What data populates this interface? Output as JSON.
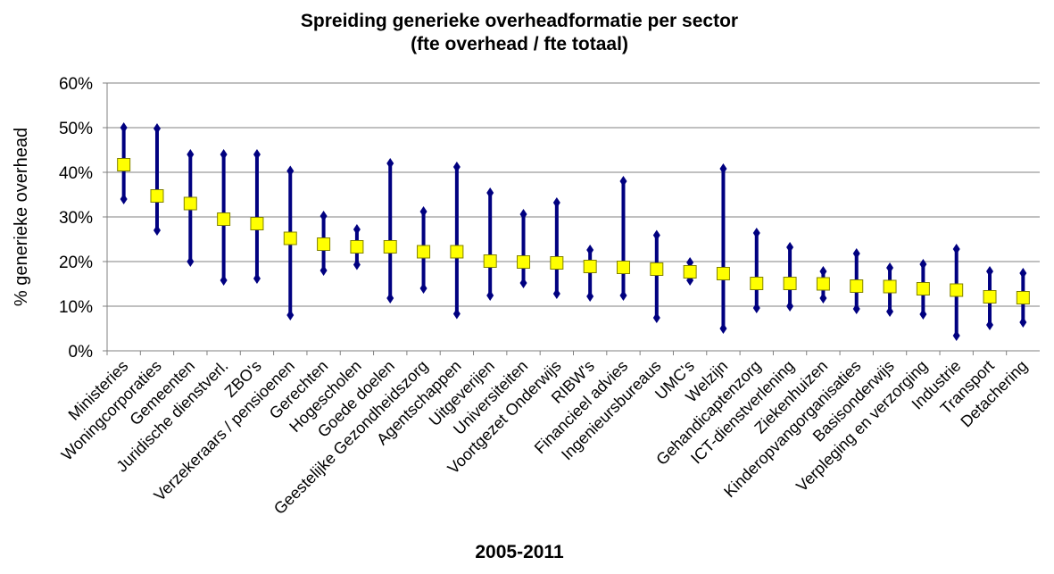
{
  "chart_data": {
    "type": "hilo",
    "title": "Spreiding generieke overheadformatie per sector",
    "subtitle": "(fte overhead / fte totaal)",
    "x_label": "2005-2011",
    "y_label": "% generieke overhead",
    "categories": [
      "Ministeries",
      "Woningcorporaties",
      "Gemeenten",
      "Juridische dienstverl.",
      "ZBO's",
      "Verzekeraars / pensioenen",
      "Gerechten",
      "Hogescholen",
      "Goede doelen",
      "Geestelijke Gezondheidszorg",
      "Agentschappen",
      "Uitgeverijen",
      "Universiteiten",
      "Voortgezet Onderwijs",
      "RIBW's",
      "Financieel advies",
      "Ingenieursbureaus",
      "UMC's",
      "Welzijn",
      "Gehandicaptenzorg",
      "ICT-dienstverlening",
      "Ziekenhuizen",
      "Kinderopvangorganisaties",
      "Basisonderwijs",
      "Verpleging en verzorging",
      "Industrie",
      "Transport",
      "Detachering"
    ],
    "high": [
      50,
      49.8,
      44,
      44,
      44,
      40.3,
      30.2,
      27.2,
      42,
      31.2,
      41.2,
      35.4,
      30.6,
      33.2,
      22.6,
      38,
      25.9,
      19.8,
      40.8,
      26.4,
      23.2,
      17.8,
      21.8,
      18.6,
      19.4,
      22.8,
      17.8,
      17.4
    ],
    "low": [
      34,
      27,
      20,
      15.8,
      16.2,
      8,
      18,
      19.3,
      11.8,
      14,
      8.3,
      12.4,
      15.2,
      12.8,
      12.2,
      12.4,
      7.4,
      15.8,
      5,
      9.6,
      10,
      11.8,
      9.4,
      8.8,
      8.2,
      3.4,
      5.8,
      6.4
    ],
    "values": [
      41.7,
      34.7,
      33,
      29.5,
      28.5,
      25.2,
      23.9,
      23.3,
      23.3,
      22.2,
      22.2,
      20.1,
      19.9,
      19.7,
      18.9,
      18.7,
      18.3,
      17.7,
      17.3,
      15.1,
      15.1,
      15,
      14.5,
      14.4,
      13.9,
      13.6,
      12.1,
      11.9
    ],
    "line_color": "#000080",
    "marker_color": "#ffff00",
    "ylim": [
      0,
      60
    ],
    "yticks": [
      {
        "value": 0,
        "label": "0%"
      },
      {
        "value": 10,
        "label": "10%"
      },
      {
        "value": 20,
        "label": "20%"
      },
      {
        "value": 30,
        "label": "30%"
      },
      {
        "value": 40,
        "label": "40%"
      },
      {
        "value": 50,
        "label": "50%"
      },
      {
        "value": 60,
        "label": "60%"
      }
    ],
    "grid": true
  }
}
